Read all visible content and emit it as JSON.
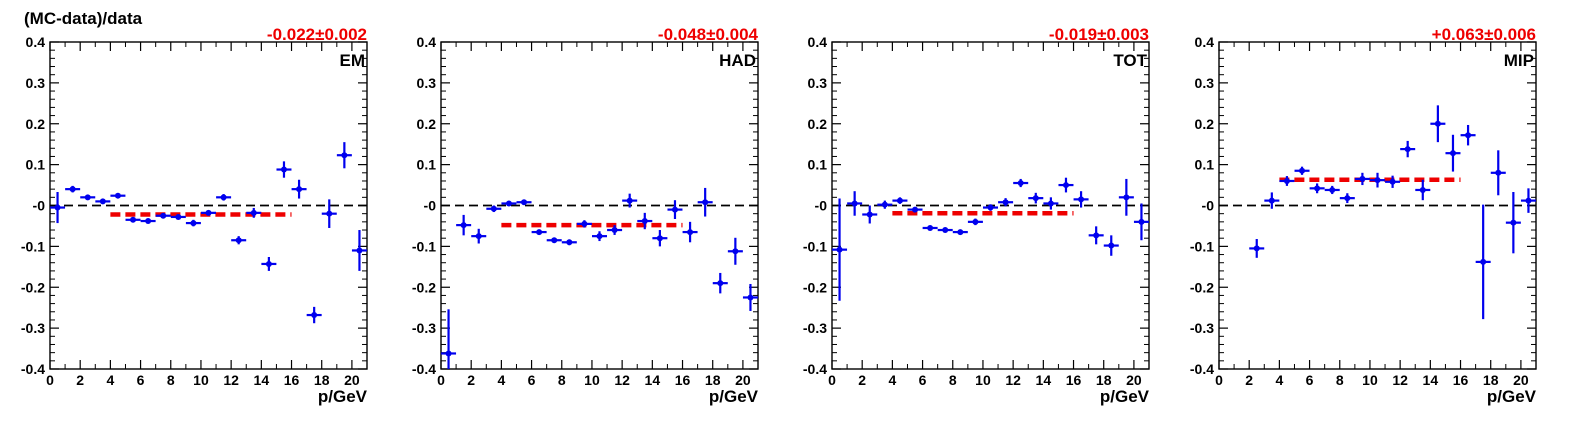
{
  "figure": {
    "ylabel": "(MC-data)/data"
  },
  "chart_data": [
    {
      "type": "scatter",
      "panel_label": "EM",
      "fit_label": "-0.022±0.002",
      "fit_value": -0.022,
      "fit_range": [
        4,
        16
      ],
      "xlabel": "p/GeV",
      "xlim": [
        0,
        21
      ],
      "ylim": [
        -0.4,
        0.4
      ],
      "x_ticks": [
        "0",
        "2",
        "4",
        "6",
        "8",
        "10",
        "12",
        "14",
        "16",
        "18",
        "20"
      ],
      "y_ticks": [
        "-0.4",
        "-0.3",
        "-0.2",
        "-0.1",
        "-0",
        "0.1",
        "0.2",
        "0.3",
        "0.4"
      ],
      "points": [
        {
          "x": 0.5,
          "y": -0.005,
          "err": 0.038
        },
        {
          "x": 1.5,
          "y": 0.04,
          "err": 0.008
        },
        {
          "x": 2.5,
          "y": 0.02,
          "err": 0.006
        },
        {
          "x": 3.5,
          "y": 0.01,
          "err": 0.006
        },
        {
          "x": 4.5,
          "y": 0.024,
          "err": 0.005
        },
        {
          "x": 5.5,
          "y": -0.035,
          "err": 0.005
        },
        {
          "x": 6.5,
          "y": -0.038,
          "err": 0.005
        },
        {
          "x": 7.5,
          "y": -0.025,
          "err": 0.005
        },
        {
          "x": 8.5,
          "y": -0.028,
          "err": 0.005
        },
        {
          "x": 9.5,
          "y": -0.043,
          "err": 0.008
        },
        {
          "x": 10.5,
          "y": -0.018,
          "err": 0.006
        },
        {
          "x": 11.5,
          "y": 0.02,
          "err": 0.008
        },
        {
          "x": 12.5,
          "y": -0.085,
          "err": 0.01
        },
        {
          "x": 13.5,
          "y": -0.018,
          "err": 0.012
        },
        {
          "x": 14.5,
          "y": -0.143,
          "err": 0.017
        },
        {
          "x": 15.5,
          "y": 0.088,
          "err": 0.02
        },
        {
          "x": 16.5,
          "y": 0.04,
          "err": 0.023
        },
        {
          "x": 17.5,
          "y": -0.268,
          "err": 0.02
        },
        {
          "x": 18.5,
          "y": -0.02,
          "err": 0.035
        },
        {
          "x": 19.5,
          "y": 0.123,
          "err": 0.032
        },
        {
          "x": 20.5,
          "y": -0.11,
          "err": 0.05
        }
      ]
    },
    {
      "type": "scatter",
      "panel_label": "HAD",
      "fit_label": "-0.048±0.004",
      "fit_value": -0.048,
      "fit_range": [
        4,
        16
      ],
      "xlabel": "p/GeV",
      "xlim": [
        0,
        21
      ],
      "ylim": [
        -0.4,
        0.4
      ],
      "x_ticks": [
        "0",
        "2",
        "4",
        "6",
        "8",
        "10",
        "12",
        "14",
        "16",
        "18",
        "20"
      ],
      "y_ticks": [
        "-0.4",
        "-0.3",
        "-0.2",
        "-0.1",
        "-0",
        "0.1",
        "0.2",
        "0.3",
        "0.4"
      ],
      "points": [
        {
          "x": 0.5,
          "y": -0.362,
          "err": 0.108
        },
        {
          "x": 1.5,
          "y": -0.048,
          "err": 0.025
        },
        {
          "x": 2.5,
          "y": -0.075,
          "err": 0.018
        },
        {
          "x": 3.5,
          "y": -0.008,
          "err": 0.008
        },
        {
          "x": 4.5,
          "y": 0.005,
          "err": 0.006
        },
        {
          "x": 5.5,
          "y": 0.008,
          "err": 0.006
        },
        {
          "x": 6.5,
          "y": -0.065,
          "err": 0.006
        },
        {
          "x": 7.5,
          "y": -0.085,
          "err": 0.006
        },
        {
          "x": 8.5,
          "y": -0.09,
          "err": 0.007
        },
        {
          "x": 9.5,
          "y": -0.045,
          "err": 0.009
        },
        {
          "x": 10.5,
          "y": -0.075,
          "err": 0.012
        },
        {
          "x": 11.5,
          "y": -0.06,
          "err": 0.012
        },
        {
          "x": 12.5,
          "y": 0.012,
          "err": 0.017
        },
        {
          "x": 13.5,
          "y": -0.038,
          "err": 0.02
        },
        {
          "x": 14.5,
          "y": -0.08,
          "err": 0.02
        },
        {
          "x": 15.5,
          "y": -0.01,
          "err": 0.023
        },
        {
          "x": 16.5,
          "y": -0.065,
          "err": 0.025
        },
        {
          "x": 17.5,
          "y": 0.008,
          "err": 0.035
        },
        {
          "x": 18.5,
          "y": -0.19,
          "err": 0.025
        },
        {
          "x": 19.5,
          "y": -0.112,
          "err": 0.033
        },
        {
          "x": 20.5,
          "y": -0.225,
          "err": 0.033
        }
      ]
    },
    {
      "type": "scatter",
      "panel_label": "TOT",
      "fit_label": "-0.019±0.003",
      "fit_value": -0.019,
      "fit_range": [
        4,
        16
      ],
      "xlabel": "p/GeV",
      "xlim": [
        0,
        21
      ],
      "ylim": [
        -0.4,
        0.4
      ],
      "x_ticks": [
        "0",
        "2",
        "4",
        "6",
        "8",
        "10",
        "12",
        "14",
        "16",
        "18",
        "20"
      ],
      "y_ticks": [
        "-0.4",
        "-0.3",
        "-0.2",
        "-0.1",
        "-0",
        "0.1",
        "0.2",
        "0.3",
        "0.4"
      ],
      "points": [
        {
          "x": 0.5,
          "y": -0.108,
          "err": 0.125
        },
        {
          "x": 1.5,
          "y": 0.005,
          "err": 0.03
        },
        {
          "x": 2.5,
          "y": -0.022,
          "err": 0.022
        },
        {
          "x": 3.5,
          "y": 0.002,
          "err": 0.01
        },
        {
          "x": 4.5,
          "y": 0.012,
          "err": 0.008
        },
        {
          "x": 5.5,
          "y": -0.01,
          "err": 0.006
        },
        {
          "x": 6.5,
          "y": -0.055,
          "err": 0.005
        },
        {
          "x": 7.5,
          "y": -0.06,
          "err": 0.005
        },
        {
          "x": 8.5,
          "y": -0.065,
          "err": 0.006
        },
        {
          "x": 9.5,
          "y": -0.04,
          "err": 0.008
        },
        {
          "x": 10.5,
          "y": -0.005,
          "err": 0.008
        },
        {
          "x": 11.5,
          "y": 0.008,
          "err": 0.01
        },
        {
          "x": 12.5,
          "y": 0.055,
          "err": 0.01
        },
        {
          "x": 13.5,
          "y": 0.018,
          "err": 0.013
        },
        {
          "x": 14.5,
          "y": 0.005,
          "err": 0.015
        },
        {
          "x": 15.5,
          "y": 0.05,
          "err": 0.018
        },
        {
          "x": 16.5,
          "y": 0.015,
          "err": 0.02
        },
        {
          "x": 17.5,
          "y": -0.073,
          "err": 0.022
        },
        {
          "x": 18.5,
          "y": -0.098,
          "err": 0.025
        },
        {
          "x": 19.5,
          "y": 0.02,
          "err": 0.045
        },
        {
          "x": 20.5,
          "y": -0.04,
          "err": 0.045
        }
      ]
    },
    {
      "type": "scatter",
      "panel_label": "MIP",
      "fit_label": "+0.063±0.006",
      "fit_value": 0.063,
      "fit_range": [
        4,
        16
      ],
      "xlabel": "p/GeV",
      "xlim": [
        0,
        21
      ],
      "ylim": [
        -0.4,
        0.4
      ],
      "x_ticks": [
        "0",
        "2",
        "4",
        "6",
        "8",
        "10",
        "12",
        "14",
        "16",
        "18",
        "20"
      ],
      "y_ticks": [
        "-0.4",
        "-0.3",
        "-0.2",
        "-0.1",
        "-0",
        "0.1",
        "0.2",
        "0.3",
        "0.4"
      ],
      "points": [
        {
          "x": 2.5,
          "y": -0.105,
          "err": 0.023
        },
        {
          "x": 3.5,
          "y": 0.012,
          "err": 0.02
        },
        {
          "x": 4.5,
          "y": 0.06,
          "err": 0.012
        },
        {
          "x": 5.5,
          "y": 0.085,
          "err": 0.01
        },
        {
          "x": 6.5,
          "y": 0.042,
          "err": 0.012
        },
        {
          "x": 7.5,
          "y": 0.038,
          "err": 0.01
        },
        {
          "x": 8.5,
          "y": 0.018,
          "err": 0.012
        },
        {
          "x": 9.5,
          "y": 0.065,
          "err": 0.015
        },
        {
          "x": 10.5,
          "y": 0.062,
          "err": 0.018
        },
        {
          "x": 11.5,
          "y": 0.058,
          "err": 0.015
        },
        {
          "x": 12.5,
          "y": 0.138,
          "err": 0.02
        },
        {
          "x": 13.5,
          "y": 0.038,
          "err": 0.025
        },
        {
          "x": 14.5,
          "y": 0.2,
          "err": 0.045
        },
        {
          "x": 15.5,
          "y": 0.128,
          "err": 0.045
        },
        {
          "x": 16.5,
          "y": 0.172,
          "err": 0.025
        },
        {
          "x": 17.5,
          "y": -0.138,
          "err": 0.14
        },
        {
          "x": 18.5,
          "y": 0.08,
          "err": 0.055
        },
        {
          "x": 19.5,
          "y": -0.042,
          "err": 0.075
        },
        {
          "x": 20.5,
          "y": 0.012,
          "err": 0.03
        }
      ]
    }
  ],
  "colors": {
    "points": "#0000ee",
    "fit": "#ee0000",
    "fit_label": "#ee0000",
    "zero_line": "#000000",
    "axes": "#000000"
  }
}
